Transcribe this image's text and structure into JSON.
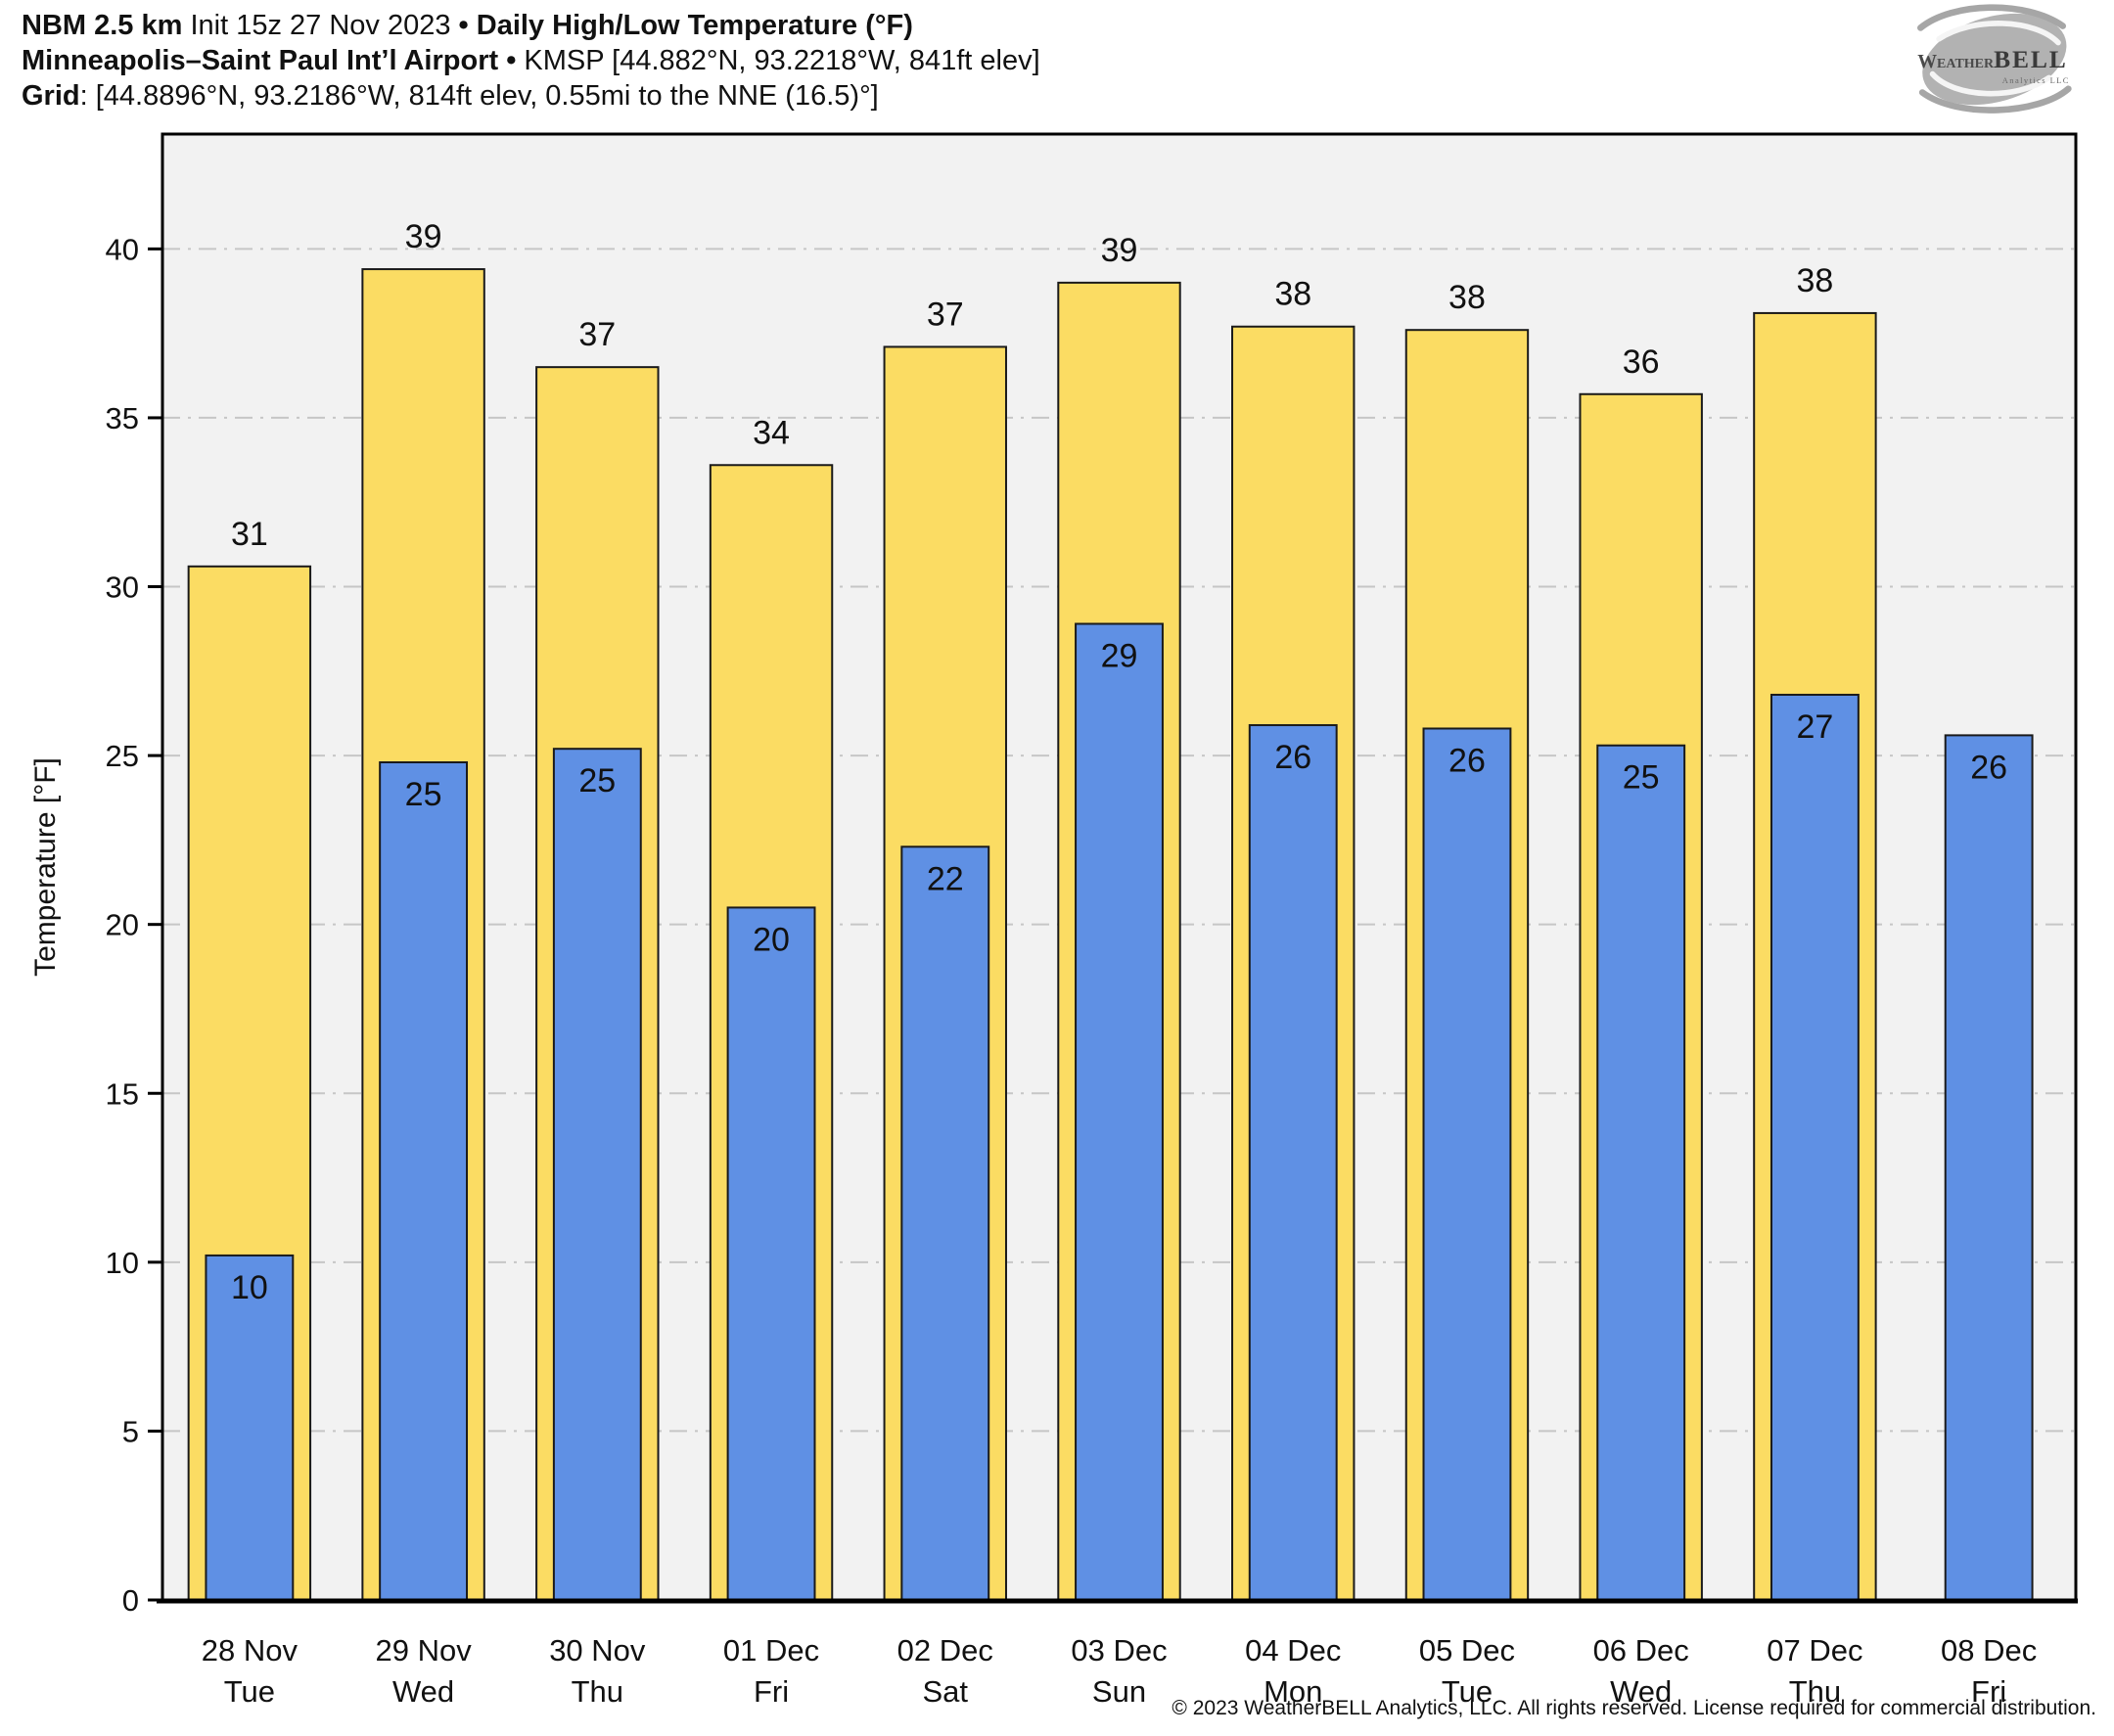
{
  "header": {
    "line1": {
      "model": "NBM 2.5 km",
      "init": "Init 15z 27 Nov 2023",
      "bullet": "•",
      "title": "Daily High/Low Temperature (°F)"
    },
    "line2": {
      "station": "Minneapolis–Saint Paul Int’l Airport",
      "bullet": "•",
      "details": "KMSP [44.882°N, 93.2218°W, 841ft elev]"
    },
    "line3": {
      "label": "Grid",
      "details": ": [44.8896°N, 93.2186°W, 814ft elev, 0.55mi to the NNE (16.5)°]"
    }
  },
  "logo": {
    "brand_a": "Weather",
    "brand_b": "BELL",
    "sub": "Analytics LLC"
  },
  "footer": {
    "copyright": "© 2023 WeatherBELL Analytics, LLC. All rights reserved. License required for commercial distribution."
  },
  "chart_data": {
    "type": "bar",
    "title": "Daily High/Low Temperature (°F)",
    "ylabel": "Temperature [°F]",
    "ylim": [
      0,
      43.4
    ],
    "yticks": [
      0,
      5,
      10,
      15,
      20,
      25,
      30,
      35,
      40
    ],
    "grid": {
      "horizontal": true,
      "style": "dashed",
      "color": "#c6c6c6"
    },
    "legend": {
      "visible": false
    },
    "plot_bg": "#f2f2f2",
    "bar_outline": "#1a1a1a",
    "categories": [
      [
        "28 Nov",
        "Tue"
      ],
      [
        "29 Nov",
        "Wed"
      ],
      [
        "30 Nov",
        "Thu"
      ],
      [
        "01 Dec",
        "Fri"
      ],
      [
        "02 Dec",
        "Sat"
      ],
      [
        "03 Dec",
        "Sun"
      ],
      [
        "04 Dec",
        "Mon"
      ],
      [
        "05 Dec",
        "Tue"
      ],
      [
        "06 Dec",
        "Wed"
      ],
      [
        "07 Dec",
        "Thu"
      ],
      [
        "08 Dec",
        "Fri"
      ]
    ],
    "series": [
      {
        "name": "Daily High",
        "color": "#FBDC63",
        "values": [
          30.6,
          39.4,
          36.5,
          33.6,
          37.1,
          39.0,
          37.7,
          37.6,
          35.7,
          38.1,
          null
        ],
        "labels": [
          "31",
          "39",
          "37",
          "34",
          "37",
          "39",
          "38",
          "38",
          "36",
          "38",
          null
        ]
      },
      {
        "name": "Daily Low",
        "color": "#5F90E4",
        "values": [
          10.2,
          24.8,
          25.2,
          20.5,
          22.3,
          28.9,
          25.9,
          25.8,
          25.3,
          26.8,
          25.6
        ],
        "labels": [
          "10",
          "25",
          "25",
          "20",
          "22",
          "29",
          "26",
          "26",
          "25",
          "27",
          "26"
        ]
      }
    ]
  }
}
